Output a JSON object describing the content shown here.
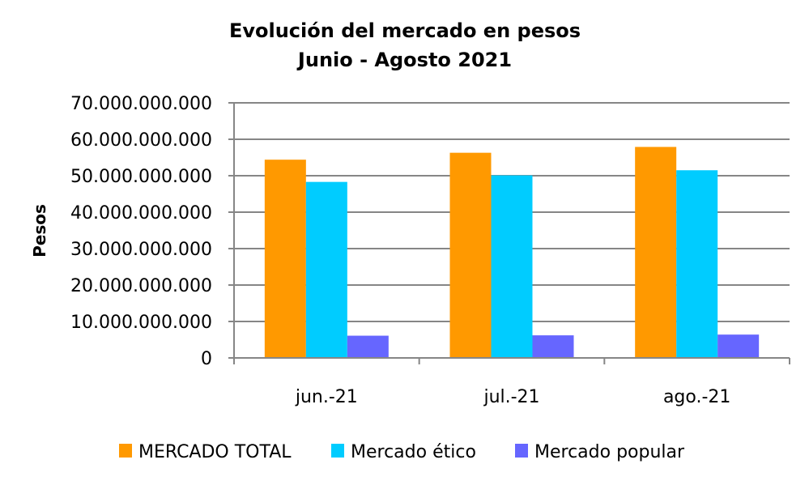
{
  "chart_data": {
    "type": "bar",
    "title": [
      "Evolución del mercado en pesos",
      "Junio - Agosto 2021"
    ],
    "xlabel": "",
    "ylabel": "Pesos",
    "categories": [
      "jun.-21",
      "jul.-21",
      "ago.-21"
    ],
    "series": [
      {
        "name": "MERCADO TOTAL",
        "color": "#FF9900",
        "values": [
          54400000000,
          56300000000,
          57900000000
        ]
      },
      {
        "name": "Mercado ético",
        "color": "#00CCFF",
        "values": [
          48300000000,
          50100000000,
          51500000000
        ]
      },
      {
        "name": "Mercado popular",
        "color": "#6666FF",
        "values": [
          6100000000,
          6200000000,
          6400000000
        ]
      }
    ],
    "ylim": [
      0,
      70000000000
    ],
    "yticks": [
      0,
      10000000000,
      20000000000,
      30000000000,
      40000000000,
      50000000000,
      60000000000,
      70000000000
    ],
    "ytick_labels": [
      "0",
      "10.000.000.000",
      "20.000.000.000",
      "30.000.000.000",
      "40.000.000.000",
      "50.000.000.000",
      "60.000.000.000",
      "70.000.000.000"
    ],
    "grid": true,
    "legend": "bottom",
    "colors": {
      "grid": "#868686",
      "axis": "#868686"
    }
  }
}
